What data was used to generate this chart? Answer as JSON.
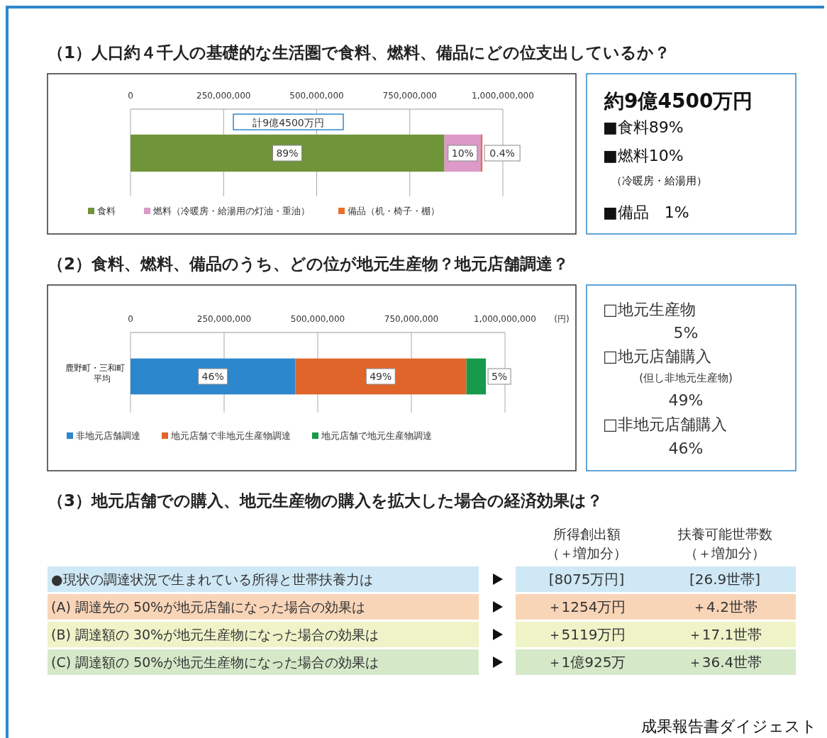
{
  "chart_data": [
    {
      "type": "bar",
      "orientation": "horizontal",
      "stacked": true,
      "title": "（1）人口約４千人の基礎的な生活圏で食料、燃料、備品にどの位支出しているか？",
      "categories": [
        null
      ],
      "xlim": [
        0,
        1000000000
      ],
      "xticks": [
        {
          "value": 0,
          "label": "0"
        },
        {
          "value": 250000000,
          "label": "250,000,000"
        },
        {
          "value": 500000000,
          "label": "500,000,000"
        },
        {
          "value": 750000000,
          "label": "750,000,000"
        },
        {
          "value": 1000000000,
          "label": "1,000,000,000"
        }
      ],
      "grid": "x",
      "legend": "bottom",
      "annotations": [
        "計9億4500万円",
        {
          "text": "89%",
          "x": 421000000
        },
        {
          "text": "10%",
          "x": 892000000
        },
        {
          "text": "0.4%",
          "x": 945000000
        }
      ],
      "series": [
        {
          "name": "食料",
          "color": "#70943a",
          "values": [
            843000000
          ]
        },
        {
          "name": "燃料（冷暖房・給湯用の灯油・重油）",
          "color": "#dd99c8",
          "values": [
            98000000
          ]
        },
        {
          "name": "備品（机・椅子・棚）",
          "color": "#e8702a",
          "values": [
            4000000
          ]
        }
      ]
    },
    {
      "type": "other",
      "annotations": [
        "約9億4500万円",
        "■食料89%",
        "■燃料10%",
        "（冷暖房・給湯用）",
        "■備品　1%"
      ]
    },
    {
      "type": "bar",
      "orientation": "horizontal",
      "stacked": true,
      "title": "（2）食料、燃料、備品のうち、どの位が地元生産物？地元店舗調達？",
      "categories": [
        "鹿野町・三和町平均"
      ],
      "xlabel": "(円)",
      "xlim": [
        0,
        1000000000
      ],
      "xticks": [
        {
          "value": 0,
          "label": "0"
        },
        {
          "value": 250000000,
          "label": "250,000,000"
        },
        {
          "value": 500000000,
          "label": "500,000,000"
        },
        {
          "value": 750000000,
          "label": "750,000,000"
        },
        {
          "value": 1000000000,
          "label": "1,000,000,000"
        }
      ],
      "grid": "x",
      "legend": "bottom",
      "annotations": [
        {
          "text": "46%",
          "x": 220000000
        },
        {
          "text": "49%",
          "x": 668000000
        },
        {
          "text": "5%",
          "x": 949000000
        }
      ],
      "series": [
        {
          "name": "非地元店舗調達",
          "color": "#2d87cd",
          "values": [
            440000000
          ]
        },
        {
          "name": "地元店舗で非地元生産物調達",
          "color": "#e0652a",
          "values": [
            457000000
          ]
        },
        {
          "name": "地元店舗で地元生産物調達",
          "color": "#16994a",
          "values": [
            52000000
          ]
        }
      ]
    },
    {
      "type": "other",
      "annotations": [
        "□地元生産物",
        "5%",
        "□地元店舗購入",
        "(但し非地元生産物)",
        "49%",
        "□非地元店舗購入",
        "46%"
      ]
    },
    {
      "type": "other",
      "title": "（3）地元店舗での購入、地元生産物の購入を拡大した場合の経済効果は？",
      "categories": [
        "所得創出額（＋増加分）",
        "扶養可能世帯数（＋増加分）"
      ],
      "y_categories": [
        "●現状の調達状況で生まれている所得と世帯扶養力は",
        "(A) 調達先の 50%が地元店舗になった場合の効果は",
        "(B) 調達額の 30%が地元生産物になった場合の効果は",
        "(C) 調達額の 50%が地元生産物になった場合の効果は"
      ],
      "cell_labels": [
        [
          "[8075万円]",
          "[26.9世帯]"
        ],
        [
          "＋1254万円",
          "＋4.2世帯"
        ],
        [
          "＋5119万円",
          "＋17.1世帯"
        ],
        [
          "＋1億925万",
          "＋36.4世帯"
        ]
      ],
      "colors": [
        "#cfe8f5",
        "#f9d5b8",
        "#eef3c8",
        "#d5e9c8"
      ],
      "annotations": [
        "成果報告書ダイジェスト"
      ]
    }
  ]
}
